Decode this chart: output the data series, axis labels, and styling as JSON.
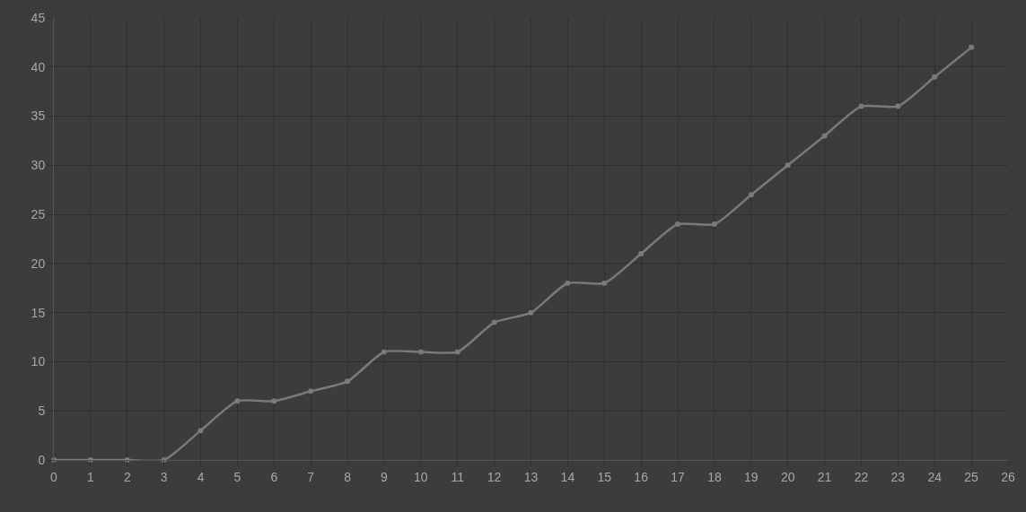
{
  "chart_data": {
    "type": "line",
    "x": [
      0,
      1,
      2,
      3,
      4,
      5,
      6,
      7,
      8,
      9,
      10,
      11,
      12,
      13,
      14,
      15,
      16,
      17,
      18,
      19,
      20,
      21,
      22,
      23,
      24,
      25
    ],
    "series": [
      {
        "color": "#7a7a7a",
        "values": [
          0,
          0,
          0,
          0,
          3,
          6,
          6,
          7,
          8,
          11,
          11,
          11,
          14,
          15,
          18,
          18,
          21,
          24,
          24,
          27,
          30,
          33,
          36,
          36,
          39,
          42
        ]
      }
    ],
    "xlim": [
      0,
      26
    ],
    "xticks": [
      0,
      1,
      2,
      3,
      4,
      5,
      6,
      7,
      8,
      9,
      10,
      11,
      12,
      13,
      14,
      15,
      16,
      17,
      18,
      19,
      20,
      21,
      22,
      23,
      24,
      25,
      26
    ],
    "ylim": [
      0,
      45
    ],
    "yticks": [
      0,
      5,
      10,
      15,
      20,
      25,
      30,
      35,
      40,
      45
    ],
    "grid": true,
    "legend": false,
    "marker": "circle",
    "line_style": "solid"
  }
}
